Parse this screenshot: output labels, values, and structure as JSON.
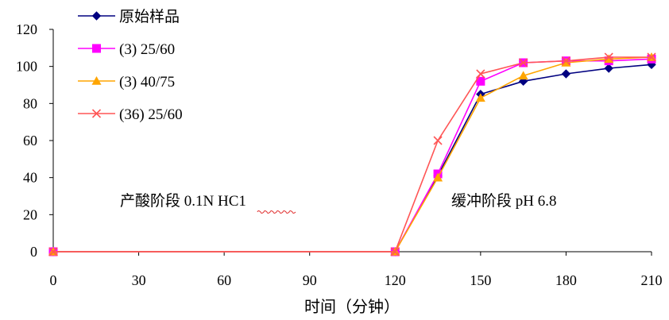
{
  "chart_data": {
    "type": "line",
    "title": "",
    "xlabel": "时间（分钟）",
    "ylabel": "",
    "x": [
      0,
      120,
      135,
      150,
      165,
      180,
      195,
      210
    ],
    "xticks": [
      0,
      30,
      60,
      90,
      120,
      150,
      180,
      210
    ],
    "yticks": [
      0,
      20,
      40,
      60,
      80,
      100,
      120
    ],
    "xlim": [
      0,
      210
    ],
    "ylim": [
      0,
      120
    ],
    "grid": false,
    "legend_position": "top-left",
    "series": [
      {
        "name": "原始样品",
        "color": "#000080",
        "marker": "diamond",
        "values": [
          0,
          0,
          41,
          85,
          92,
          96,
          99,
          101
        ]
      },
      {
        "name": "(3) 25/60",
        "color": "#ff00ff",
        "marker": "square",
        "values": [
          0,
          0,
          42,
          92,
          102,
          103,
          103,
          104
        ]
      },
      {
        "name": "(3) 40/75",
        "color": "#ffa500",
        "marker": "triangle",
        "values": [
          0,
          0,
          40,
          83,
          95,
          102,
          104,
          105
        ]
      },
      {
        "name": "(36) 25/60",
        "color": "#ff5555",
        "marker": "x",
        "values": [
          0,
          0,
          60,
          96,
          102,
          103,
          105,
          105
        ]
      }
    ],
    "annotations": [
      {
        "id": "acid",
        "text": "产酸阶段  0.1N  HC1"
      },
      {
        "id": "buffer",
        "text": "缓冲阶段    pH 6.8"
      }
    ]
  }
}
